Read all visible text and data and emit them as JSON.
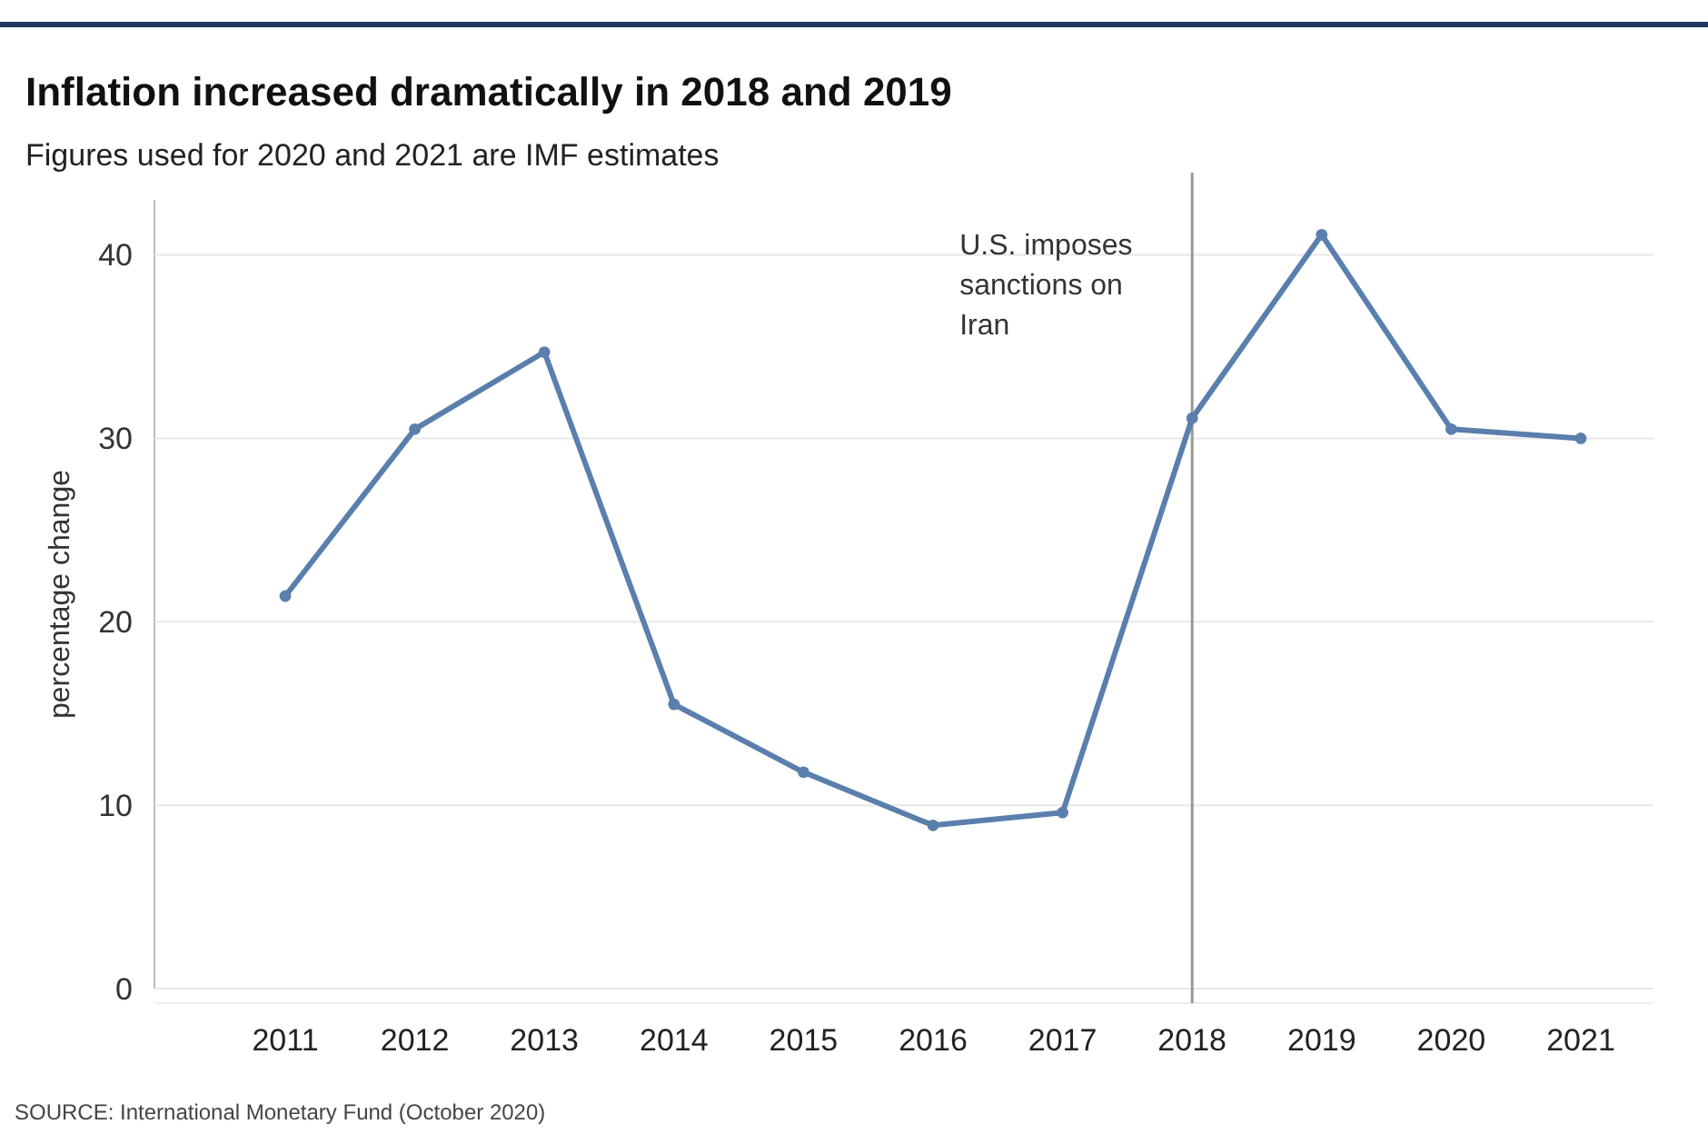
{
  "chart_data": {
    "type": "line",
    "title": "Inflation increased dramatically in 2018 and 2019",
    "subtitle": "Figures used for 2020 and 2021 are IMF estimates",
    "ylabel": "percentage change",
    "categories": [
      "2011",
      "2012",
      "2013",
      "2014",
      "2015",
      "2016",
      "2017",
      "2018",
      "2019",
      "2020",
      "2021"
    ],
    "series": [
      {
        "color": "#5a7fad",
        "values": [
          21.4,
          30.5,
          34.7,
          15.5,
          11.8,
          8.9,
          9.6,
          31.1,
          41.1,
          30.5,
          30.0
        ]
      }
    ],
    "ylim": [
      0,
      43
    ],
    "yticks": [
      0,
      10,
      20,
      30,
      40
    ],
    "grid": "y",
    "marker": "circle",
    "line_style": "solid",
    "ref_lines": [
      {
        "axis": "x",
        "value": "2018",
        "label": "U.S. imposes sanctions on Iran",
        "color": "#999999"
      }
    ],
    "annotations": [
      "SOURCE: International Monetary Fund (October 2020)"
    ]
  }
}
